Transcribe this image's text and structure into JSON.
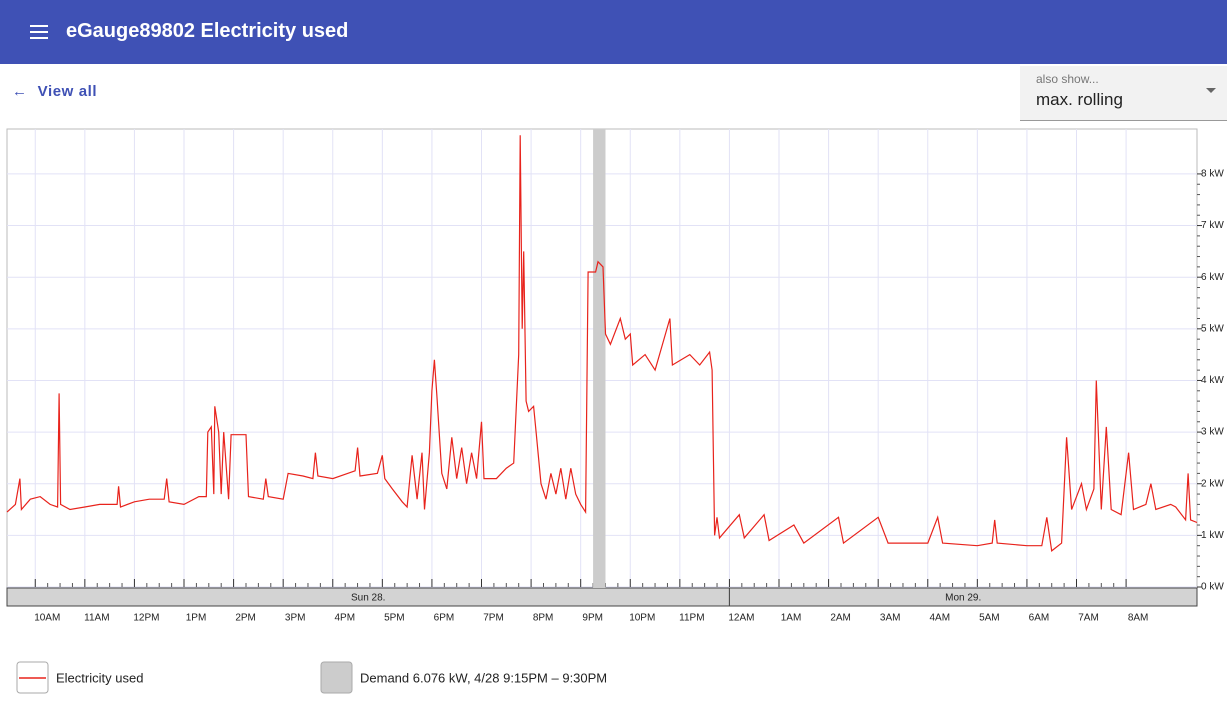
{
  "header": {
    "title": "eGauge89802 Electricity used"
  },
  "nav": {
    "back": "View all"
  },
  "select": {
    "label": "also show...",
    "value": "max. rolling"
  },
  "chart_data": {
    "type": "line",
    "x": [
      9.43,
      9.6,
      9.69,
      9.72,
      9.9,
      10.1,
      10.3,
      10.45,
      10.48,
      10.51,
      10.7,
      11.0,
      11.3,
      11.65,
      11.68,
      11.72,
      12.0,
      12.3,
      12.6,
      12.65,
      12.7,
      13.0,
      13.3,
      13.45,
      13.48,
      13.55,
      13.6,
      13.62,
      13.7,
      13.75,
      13.8,
      13.9,
      13.95,
      14.25,
      14.3,
      14.6,
      14.65,
      14.7,
      15.0,
      15.1,
      15.4,
      15.6,
      15.65,
      15.7,
      16.0,
      16.3,
      16.45,
      16.5,
      16.55,
      16.9,
      17.0,
      17.05,
      17.2,
      17.4,
      17.5,
      17.6,
      17.7,
      17.8,
      17.85,
      17.95,
      18.0,
      18.05,
      18.1,
      18.2,
      18.3,
      18.4,
      18.5,
      18.6,
      18.7,
      18.8,
      18.9,
      19.0,
      19.05,
      19.3,
      19.5,
      19.65,
      19.75,
      19.78,
      19.82,
      19.85,
      19.9,
      19.95,
      20.05,
      20.1,
      20.2,
      20.3,
      20.4,
      20.5,
      20.6,
      20.7,
      20.8,
      20.9,
      21.0,
      21.1,
      21.15,
      21.3,
      21.35,
      21.45,
      21.5,
      21.6,
      21.8,
      21.9,
      22.0,
      22.05,
      22.3,
      22.5,
      22.8,
      22.85,
      23.2,
      23.4,
      23.6,
      23.65,
      23.7,
      23.75,
      23.8,
      24.2,
      24.3,
      24.7,
      24.8,
      25.3,
      25.5,
      26.2,
      26.3,
      27.0,
      27.2,
      28.0,
      28.2,
      28.3,
      29.0,
      29.3,
      29.35,
      29.4,
      30.0,
      30.3,
      30.4,
      30.5,
      30.7,
      30.8,
      30.9,
      31.1,
      31.2,
      31.35,
      31.4,
      31.5,
      31.6,
      31.7,
      31.9,
      32.05,
      32.15,
      32.4,
      32.5,
      32.6,
      32.9,
      33.0,
      33.2,
      33.25,
      33.3,
      33.43
    ],
    "series": [
      {
        "name": "Electricity used",
        "color": "#e8231c",
        "values": [
          1.45,
          1.6,
          2.1,
          1.5,
          1.7,
          1.75,
          1.6,
          1.55,
          3.75,
          1.6,
          1.5,
          1.55,
          1.6,
          1.6,
          1.95,
          1.55,
          1.65,
          1.7,
          1.7,
          2.1,
          1.65,
          1.6,
          1.75,
          1.75,
          3.0,
          3.1,
          1.8,
          3.5,
          3.0,
          1.8,
          3.0,
          1.7,
          2.95,
          2.95,
          1.75,
          1.7,
          2.1,
          1.75,
          1.7,
          2.2,
          2.15,
          2.1,
          2.6,
          2.15,
          2.1,
          2.2,
          2.25,
          2.7,
          2.15,
          2.2,
          2.55,
          2.1,
          1.9,
          1.65,
          1.55,
          2.55,
          1.7,
          2.6,
          1.5,
          2.6,
          3.8,
          4.4,
          3.7,
          2.2,
          1.9,
          2.9,
          2.1,
          2.7,
          2.0,
          2.6,
          2.1,
          3.2,
          2.1,
          2.1,
          2.3,
          2.4,
          4.5,
          8.75,
          5.0,
          6.5,
          3.6,
          3.4,
          3.5,
          3.0,
          2.0,
          1.7,
          2.2,
          1.8,
          2.3,
          1.7,
          2.3,
          1.8,
          1.6,
          1.45,
          6.1,
          6.1,
          6.3,
          6.2,
          4.9,
          4.7,
          5.2,
          4.8,
          4.9,
          4.3,
          4.5,
          4.2,
          5.2,
          4.3,
          4.5,
          4.3,
          4.55,
          4.2,
          1.0,
          1.35,
          0.95,
          1.4,
          0.95,
          1.4,
          0.9,
          1.2,
          0.85,
          1.35,
          0.85,
          1.35,
          0.85,
          0.85,
          1.35,
          0.85,
          0.8,
          0.85,
          1.3,
          0.85,
          0.8,
          0.8,
          1.35,
          0.7,
          0.85,
          2.9,
          1.5,
          2.0,
          1.5,
          1.9,
          4.0,
          1.5,
          3.1,
          1.5,
          1.4,
          2.6,
          1.5,
          1.6,
          2.0,
          1.5,
          1.6,
          1.55,
          1.3,
          2.2,
          1.3,
          1.25
        ]
      }
    ],
    "xlim": [
      9.43,
      33.43
    ],
    "xticks": [
      {
        "value": 10,
        "label": "10AM"
      },
      {
        "value": 11,
        "label": "11AM"
      },
      {
        "value": 12,
        "label": "12PM"
      },
      {
        "value": 13,
        "label": "1PM"
      },
      {
        "value": 14,
        "label": "2PM"
      },
      {
        "value": 15,
        "label": "3PM"
      },
      {
        "value": 16,
        "label": "4PM"
      },
      {
        "value": 17,
        "label": "5PM"
      },
      {
        "value": 18,
        "label": "6PM"
      },
      {
        "value": 19,
        "label": "7PM"
      },
      {
        "value": 20,
        "label": "8PM"
      },
      {
        "value": 21,
        "label": "9PM"
      },
      {
        "value": 22,
        "label": "10PM"
      },
      {
        "value": 23,
        "label": "11PM"
      },
      {
        "value": 24,
        "label": "12AM"
      },
      {
        "value": 25,
        "label": "1AM"
      },
      {
        "value": 26,
        "label": "2AM"
      },
      {
        "value": 27,
        "label": "3AM"
      },
      {
        "value": 28,
        "label": "4AM"
      },
      {
        "value": 29,
        "label": "5AM"
      },
      {
        "value": 30,
        "label": "6AM"
      },
      {
        "value": 31,
        "label": "7AM"
      },
      {
        "value": 32,
        "label": "8AM"
      }
    ],
    "ylim": [
      0,
      8.87
    ],
    "yticks": [
      {
        "value": 0,
        "label": "0 kW"
      },
      {
        "value": 1,
        "label": "1 kW"
      },
      {
        "value": 2,
        "label": "2 kW"
      },
      {
        "value": 3,
        "label": "3 kW"
      },
      {
        "value": 4,
        "label": "4 kW"
      },
      {
        "value": 5,
        "label": "5 kW"
      },
      {
        "value": 6,
        "label": "6 kW"
      },
      {
        "value": 7,
        "label": "7 kW"
      },
      {
        "value": 8,
        "label": "8 kW"
      }
    ],
    "grid": true,
    "date_bands": [
      {
        "label": "Sun 28.",
        "start": 9.43,
        "end": 24
      },
      {
        "label": "Mon 29.",
        "start": 24,
        "end": 33.43
      }
    ],
    "demand": {
      "label": "Demand 6.076 kW, 4/28 9:15PM – 9:30PM",
      "start": 21.25,
      "end": 21.5,
      "color": "#cccccc"
    }
  }
}
